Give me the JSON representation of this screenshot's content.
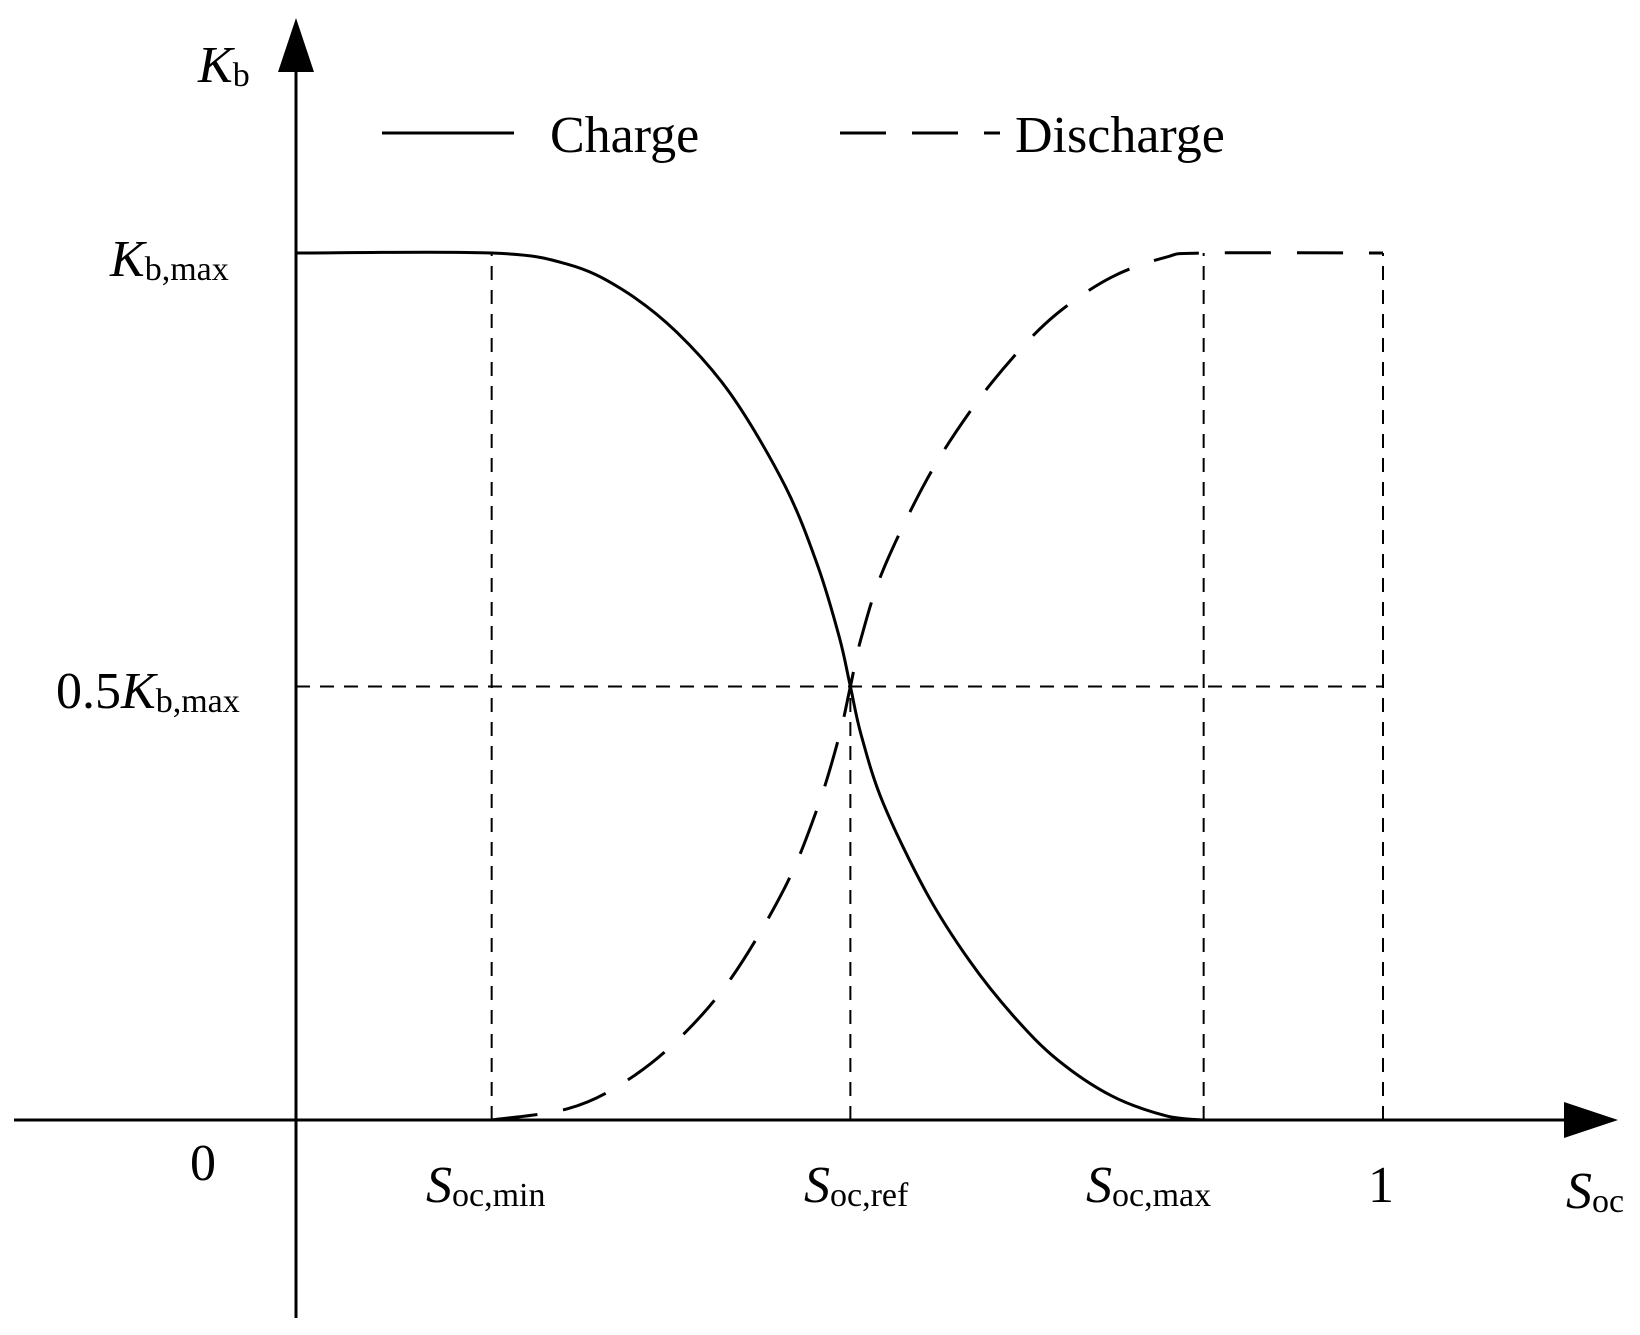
{
  "chart_data": {
    "type": "line",
    "xlabel": {
      "main": "S",
      "sub": "oc"
    },
    "ylabel": {
      "main": "K",
      "sub": "b"
    },
    "xlim": [
      0,
      1
    ],
    "ylim": [
      0,
      1
    ],
    "origin_label": "0",
    "x_ticks": [
      {
        "main": "S",
        "sub": "oc,min",
        "value": 0.18
      },
      {
        "main": "S",
        "sub": "oc,ref",
        "value": 0.51
      },
      {
        "main": "S",
        "sub": "oc,max",
        "value": 0.835
      },
      {
        "main": "",
        "sub": "",
        "plain": "1",
        "value": 1.0
      }
    ],
    "y_ticks": [
      {
        "prefix": "",
        "main": "K",
        "sub": "b,max",
        "value": 1.0
      },
      {
        "prefix": "0.5",
        "main": "K",
        "sub": "b,max",
        "value": 0.5
      }
    ],
    "legend": {
      "position": "top",
      "entries": [
        {
          "label": "Charge",
          "style": "solid"
        },
        {
          "label": "Discharge",
          "style": "dashed"
        }
      ]
    },
    "series": [
      {
        "name": "Charge",
        "style": "solid",
        "x": [
          0,
          0.18,
          0.25,
          0.3,
          0.35,
          0.4,
          0.45,
          0.48,
          0.5,
          0.51,
          0.52,
          0.54,
          0.58,
          0.62,
          0.66,
          0.7,
          0.75,
          0.8,
          0.835
        ],
        "y": [
          1.0,
          1.0,
          0.987,
          0.958,
          0.909,
          0.837,
          0.731,
          0.639,
          0.556,
          0.5,
          0.444,
          0.366,
          0.262,
          0.183,
          0.12,
          0.07,
          0.028,
          0.005,
          0.0
        ]
      },
      {
        "name": "Discharge",
        "style": "dashed",
        "x": [
          0.18,
          0.25,
          0.3,
          0.35,
          0.4,
          0.45,
          0.48,
          0.5,
          0.51,
          0.52,
          0.54,
          0.58,
          0.62,
          0.66,
          0.7,
          0.75,
          0.8,
          0.835,
          1.0
        ],
        "y": [
          0.0,
          0.013,
          0.042,
          0.091,
          0.163,
          0.269,
          0.361,
          0.444,
          0.5,
          0.556,
          0.634,
          0.738,
          0.817,
          0.88,
          0.93,
          0.972,
          0.995,
          1.0,
          1.0
        ]
      }
    ],
    "reference_lines": [
      {
        "orientation": "vertical",
        "x": 0.18,
        "y_to": 1.0
      },
      {
        "orientation": "vertical",
        "x": 0.51,
        "y_to": 0.5
      },
      {
        "orientation": "vertical",
        "x": 0.835,
        "y_to": 1.0
      },
      {
        "orientation": "vertical",
        "x": 1.0,
        "y_to": 1.0
      },
      {
        "orientation": "horizontal",
        "y": 0.5,
        "x_to": 1.0
      }
    ],
    "grid": false
  }
}
